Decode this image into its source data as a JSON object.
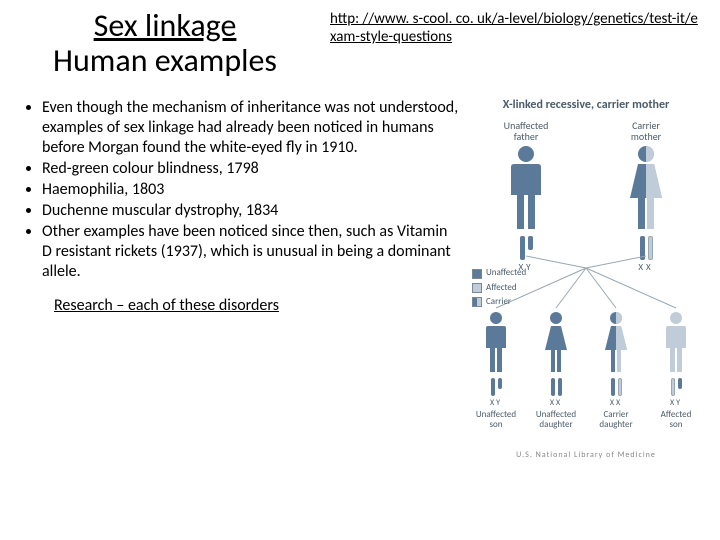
{
  "title": {
    "line1": "Sex linkage",
    "line2": "Human examples"
  },
  "link": {
    "text": "http: //www. s-cool. co. uk/a-level/biology/genetics/test-it/exam-style-questions",
    "href": "http://www.s-cool.co.uk/a-level/biology/genetics/test-it/exam-style-questions"
  },
  "bullets": [
    "Even though the mechanism of inheritance was not understood, examples of sex linkage had already been noticed in humans before Morgan found the white-eyed fly in 1910.",
    "Red-green colour blindness, 1798",
    "Haemophilia, 1803",
    "Duchenne muscular dystrophy, 1834",
    "Other examples have been noticed since then, such as Vitamin D resistant rickets (1937), which is unusual in being a dominant allele."
  ],
  "research": "Research – each of these disorders",
  "diagram": {
    "title": "X-linked recessive, carrier mother",
    "parents": [
      {
        "label": "Unaffected\nfather",
        "genotype": "XY",
        "barColors": [
          "#5b7a99",
          "#5b7a99"
        ],
        "fill": "unaffected"
      },
      {
        "label": "Carrier\nmother",
        "genotype": "XX",
        "barColors": [
          "#5b7a99",
          "#c0cdd8"
        ],
        "fill": "carrier"
      }
    ],
    "children": [
      {
        "label": "Unaffected\nson",
        "genotype": "XY",
        "barColors": [
          "#5b7a99",
          "#5b7a99"
        ],
        "fill": "unaffected"
      },
      {
        "label": "Unaffected\ndaughter",
        "genotype": "XX",
        "barColors": [
          "#5b7a99",
          "#5b7a99"
        ],
        "fill": "unaffected"
      },
      {
        "label": "Carrier\ndaughter",
        "genotype": "XX",
        "barColors": [
          "#5b7a99",
          "#c0cdd8"
        ],
        "fill": "carrier"
      },
      {
        "label": "Affected\nson",
        "genotype": "XY",
        "barColors": [
          "#c0cdd8",
          "#5b7a99"
        ],
        "fill": "affected"
      }
    ],
    "legend": [
      {
        "label": "Unaffected",
        "color": "#5b7a99"
      },
      {
        "label": "Affected",
        "color": "#c0cdd8"
      },
      {
        "label": "Carrier",
        "half1": "#5b7a99",
        "half2": "#c0cdd8"
      }
    ],
    "colors": {
      "unaffected": "#5b7a99",
      "affected": "#c0cdd8",
      "outline": "#4a5c6a",
      "line": "#9aa7b3",
      "bg": "#ffffff",
      "text": "#4a5c6a"
    },
    "credit": "U.S. National Library of Medicine"
  }
}
